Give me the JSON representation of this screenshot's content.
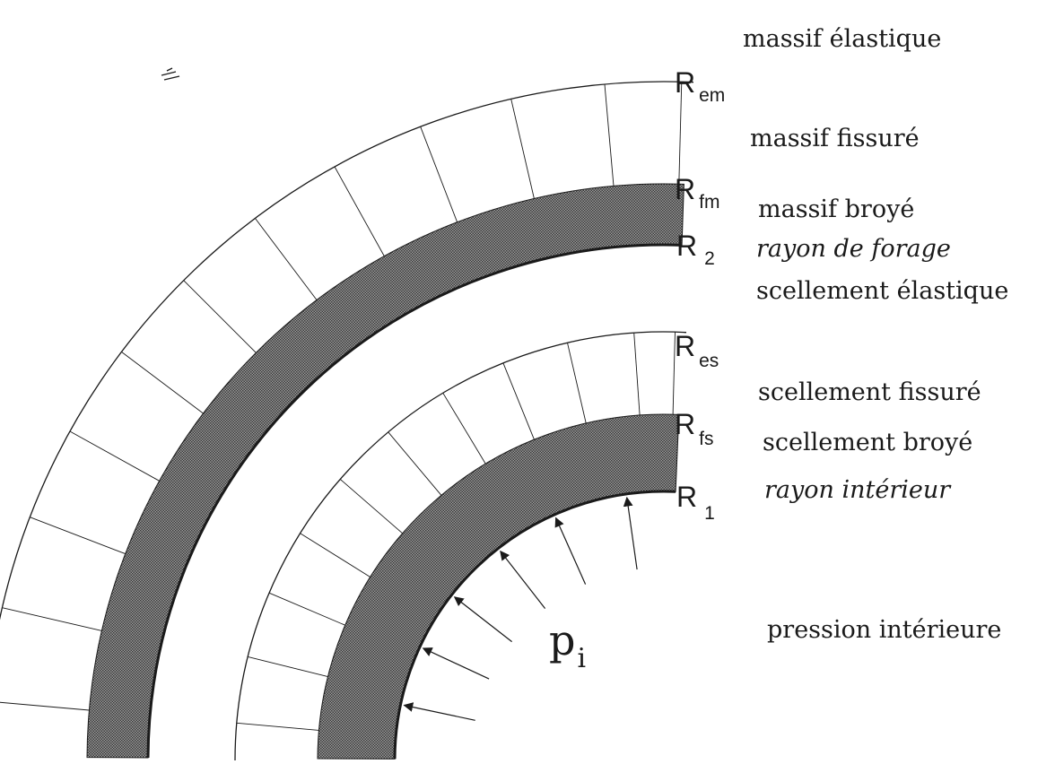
{
  "colors": {
    "line": "#1a1a1a",
    "hatch": "#555555",
    "background": "#ffffff"
  },
  "zones": {
    "massif_elastique": "massif élastique",
    "massif_fissure": "massif fissuré",
    "massif_broye": "massif broyé",
    "rayon_forage": "rayon de forage",
    "scellement_elastique": "scellement élastique",
    "scellement_fissure": "scellement fissuré",
    "scellement_broye": "scellement broyé",
    "rayon_interieur": "rayon intérieur",
    "pression_interieure": "pression intérieure"
  },
  "radii": {
    "R_em": {
      "main": "R",
      "sub": "em"
    },
    "R_fm": {
      "main": "R",
      "sub": "fm"
    },
    "R_2": {
      "main": "R",
      "sub": "2"
    },
    "R_es": {
      "main": "R",
      "sub": "es"
    },
    "R_fs": {
      "main": "R",
      "sub": "fs"
    },
    "R_1": {
      "main": "R",
      "sub": "1"
    }
  },
  "pressure": {
    "main": "p",
    "sub": "i"
  }
}
